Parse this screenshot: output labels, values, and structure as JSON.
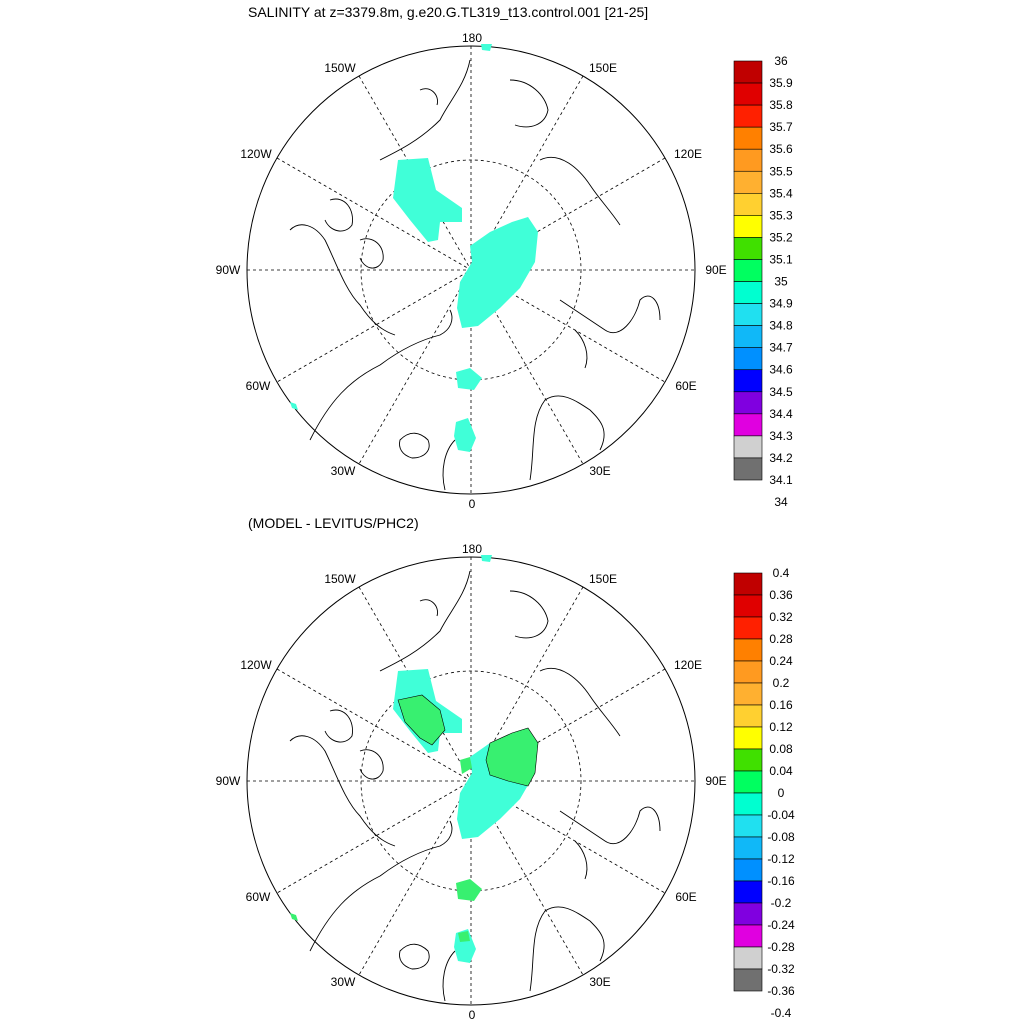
{
  "panel_top": {
    "title": "SALINITY at z=3379.8m, g.e20.G.TL319_t13.control.001 [21-25]",
    "colorbar_labels": [
      "36",
      "35.9",
      "35.8",
      "35.7",
      "35.6",
      "35.5",
      "35.4",
      "35.3",
      "35.2",
      "35.1",
      "35",
      "34.9",
      "34.8",
      "34.7",
      "34.6",
      "34.5",
      "34.4",
      "34.3",
      "34.2",
      "34.1",
      "34"
    ]
  },
  "panel_bottom": {
    "title": "(MODEL - LEVITUS/PHC2)",
    "colorbar_labels": [
      "0.4",
      "0.36",
      "0.32",
      "0.28",
      "0.24",
      "0.2",
      "0.16",
      "0.12",
      "0.08",
      "0.04",
      "0",
      "-0.04",
      "-0.08",
      "-0.12",
      "-0.16",
      "-0.2",
      "-0.24",
      "-0.28",
      "-0.32",
      "-0.36",
      "-0.4"
    ]
  },
  "longitude_labels": {
    "l180": "180",
    "l150w": "150W",
    "l150e": "150E",
    "l120w": "120W",
    "l120e": "120E",
    "l90w": "90W",
    "l90e": "90E",
    "l60w": "60W",
    "l60e": "60E",
    "l30w": "30W",
    "l30e": "30E",
    "l0": "0"
  },
  "colors": {
    "colorbar": [
      "#c00000",
      "#e00000",
      "#ff2000",
      "#ff8000",
      "#ff9a20",
      "#ffb030",
      "#ffd030",
      "#ffff00",
      "#40e000",
      "#00ff60",
      "#00ffd0",
      "#20e0f0",
      "#10b8f8",
      "#0090ff",
      "#0000ff",
      "#8000e0",
      "#e000e0",
      "#d0d0d0",
      "#707070"
    ],
    "region_top": "#40ffd8",
    "region_diff_pos": "#38f070",
    "region_diff_neg": "#40ffd8"
  }
}
